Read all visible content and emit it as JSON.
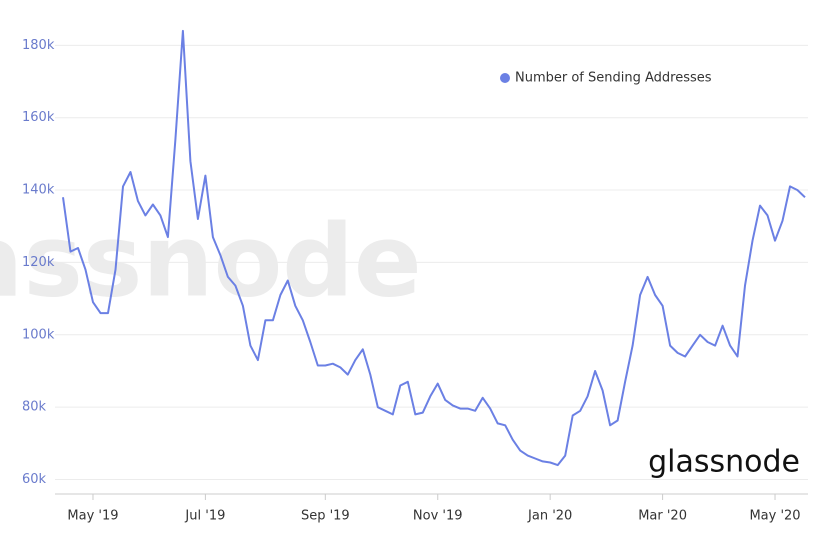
{
  "chart_data": {
    "type": "line",
    "watermark": "glassnode",
    "categories": [
      null,
      null,
      null,
      null,
      "May '19",
      null,
      null,
      null,
      null,
      null,
      null,
      null,
      null,
      null,
      null,
      null,
      null,
      null,
      null,
      "Jul '19",
      null,
      null,
      null,
      null,
      null,
      null,
      null,
      null,
      null,
      null,
      null,
      null,
      null,
      null,
      null,
      "Sep '19",
      null,
      null,
      null,
      null,
      null,
      null,
      null,
      null,
      null,
      null,
      null,
      null,
      null,
      null,
      "Nov '19",
      null,
      null,
      null,
      null,
      null,
      null,
      null,
      null,
      null,
      null,
      null,
      null,
      null,
      null,
      "Jan '20",
      null,
      null,
      null,
      null,
      null,
      null,
      null,
      null,
      null,
      null,
      null,
      null,
      null,
      null,
      "Mar '20",
      null,
      null,
      null,
      null,
      null,
      null,
      null,
      null,
      null,
      null,
      null,
      null,
      null,
      null,
      "May '20",
      null,
      null,
      null,
      null
    ],
    "series": [
      {
        "name": "Number of Sending Addresses",
        "color": "#6b80e4",
        "values": [
          138000,
          123000,
          124000,
          118000,
          109000,
          106000,
          106000,
          118000,
          141000,
          145000,
          137000,
          133000,
          136000,
          133000,
          127000,
          154000,
          184000,
          148000,
          132000,
          144000,
          127000,
          122000,
          116000,
          113600,
          108000,
          97000,
          93000,
          104000,
          104000,
          111000,
          115000,
          108000,
          104000,
          98000,
          91500,
          91500,
          92000,
          91000,
          89000,
          93000,
          96000,
          89000,
          80000,
          79000,
          78000,
          86000,
          87000,
          78000,
          78500,
          83000,
          86500,
          82000,
          80500,
          79600,
          79600,
          79000,
          82600,
          79600,
          75500,
          75000,
          71000,
          68000,
          66600,
          65800,
          65000,
          64700,
          64000,
          66600,
          77700,
          79000,
          83000,
          90000,
          84600,
          75000,
          76300,
          87000,
          97000,
          111000,
          116000,
          111000,
          108000,
          97000,
          95000,
          94000,
          97000,
          100000,
          98000,
          97000,
          102500,
          97000,
          94000,
          113600,
          126000,
          135700,
          133000,
          126000,
          131500,
          141000,
          140000,
          138000
        ]
      }
    ],
    "ylim": [
      56000,
      187000
    ],
    "yticks": [
      {
        "value": 60000,
        "label": "60k"
      },
      {
        "value": 80000,
        "label": "80k"
      },
      {
        "value": 100000,
        "label": "100k"
      },
      {
        "value": 120000,
        "label": "120k"
      },
      {
        "value": 140000,
        "label": "140k"
      },
      {
        "value": 160000,
        "label": "160k"
      },
      {
        "value": 180000,
        "label": "180k"
      }
    ],
    "grid": true,
    "legend": "top-right"
  }
}
